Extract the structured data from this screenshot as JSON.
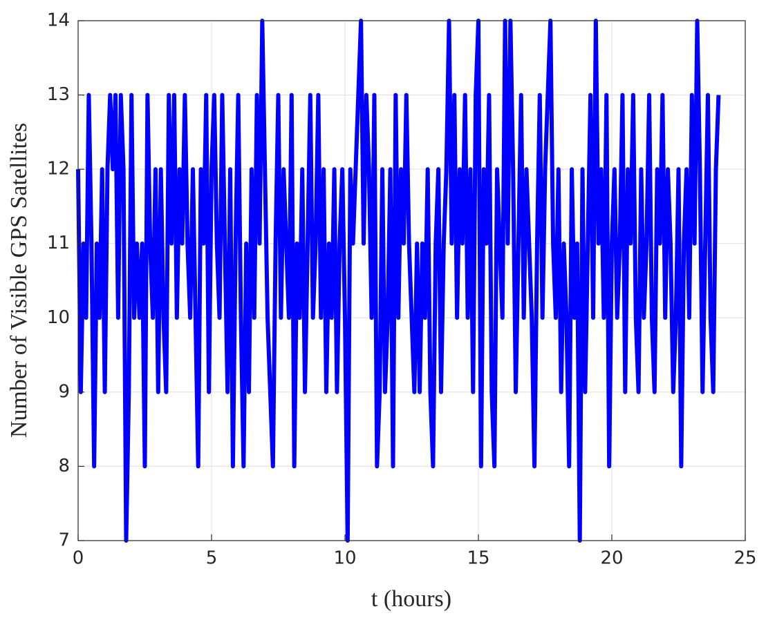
{
  "chart_data": {
    "type": "line",
    "xlabel": "t (hours)",
    "ylabel": "Number of Visible GPS Satellites",
    "color": "#0000ff",
    "grid": true,
    "xlim": [
      0,
      25
    ],
    "xticks": [
      0,
      5,
      10,
      15,
      20,
      25
    ],
    "ylim": [
      7,
      14
    ],
    "yticks": [
      7,
      8,
      9,
      10,
      11,
      12,
      13,
      14
    ],
    "x": [
      0,
      0.1,
      0.2,
      0.3,
      0.4,
      0.5,
      0.6,
      0.7,
      0.8,
      0.9,
      1,
      1.1,
      1.2,
      1.3,
      1.4,
      1.5,
      1.6,
      1.7,
      1.8,
      1.9,
      2,
      2.1,
      2.2,
      2.3,
      2.4,
      2.5,
      2.6,
      2.7,
      2.8,
      2.9,
      3,
      3.1,
      3.2,
      3.3,
      3.4,
      3.5,
      3.6,
      3.7,
      3.8,
      3.9,
      4,
      4.1,
      4.2,
      4.3,
      4.4,
      4.5,
      4.6,
      4.7,
      4.8,
      4.9,
      5,
      5.1,
      5.2,
      5.3,
      5.4,
      5.5,
      5.6,
      5.7,
      5.8,
      5.9,
      6,
      6.1,
      6.2,
      6.3,
      6.4,
      6.5,
      6.6,
      6.7,
      6.8,
      6.9,
      7,
      7.1,
      7.2,
      7.3,
      7.4,
      7.5,
      7.6,
      7.7,
      7.8,
      7.9,
      8,
      8.1,
      8.2,
      8.3,
      8.4,
      8.5,
      8.6,
      8.7,
      8.8,
      8.9,
      9,
      9.1,
      9.2,
      9.3,
      9.4,
      9.5,
      9.6,
      9.7,
      9.8,
      9.9,
      10,
      10.1,
      10.2,
      10.3,
      10.4,
      10.5,
      10.6,
      10.7,
      10.8,
      10.9,
      11,
      11.1,
      11.2,
      11.3,
      11.4,
      11.5,
      11.6,
      11.7,
      11.8,
      11.9,
      12,
      12.1,
      12.2,
      12.3,
      12.4,
      12.5,
      12.6,
      12.7,
      12.8,
      12.9,
      13,
      13.1,
      13.2,
      13.3,
      13.4,
      13.5,
      13.6,
      13.7,
      13.8,
      13.9,
      14,
      14.1,
      14.2,
      14.3,
      14.4,
      14.5,
      14.6,
      14.7,
      14.8,
      14.9,
      15,
      15.1,
      15.2,
      15.3,
      15.4,
      15.5,
      15.6,
      15.7,
      15.8,
      15.9,
      16,
      16.1,
      16.2,
      16.3,
      16.4,
      16.5,
      16.6,
      16.7,
      16.8,
      16.9,
      17,
      17.1,
      17.2,
      17.3,
      17.4,
      17.5,
      17.6,
      17.7,
      17.8,
      17.9,
      18,
      18.1,
      18.2,
      18.3,
      18.4,
      18.5,
      18.6,
      18.7,
      18.8,
      18.9,
      19,
      19.1,
      19.2,
      19.3,
      19.4,
      19.5,
      19.6,
      19.7,
      19.8,
      19.9,
      20,
      20.1,
      20.2,
      20.3,
      20.4,
      20.5,
      20.6,
      20.7,
      20.8,
      20.9,
      21,
      21.1,
      21.2,
      21.3,
      21.4,
      21.5,
      21.6,
      21.7,
      21.8,
      21.9,
      22,
      22.1,
      22.2,
      22.3,
      22.4,
      22.5,
      22.6,
      22.7,
      22.8,
      22.9,
      23,
      23.1,
      23.2,
      23.3,
      23.4,
      23.5,
      23.6,
      23.7,
      23.8,
      23.9,
      24
    ],
    "values": [
      12,
      9,
      11,
      10,
      13,
      11,
      8,
      11,
      10,
      12,
      9,
      12,
      13,
      12,
      13,
      10,
      13,
      12,
      7,
      9,
      13,
      10,
      11,
      10,
      11,
      8,
      13,
      11,
      10,
      12,
      9,
      12,
      10,
      9,
      13,
      11,
      13,
      10,
      12,
      11,
      13,
      11,
      10,
      12,
      10,
      8,
      12,
      11,
      13,
      9,
      12,
      13,
      11,
      10,
      13,
      11,
      9,
      12,
      8,
      11,
      13,
      10,
      8,
      11,
      9,
      12,
      10,
      13,
      11,
      14,
      12,
      10,
      9,
      8,
      11,
      13,
      10,
      12,
      11,
      10,
      13,
      8,
      11,
      10,
      12,
      9,
      11,
      13,
      10,
      11,
      13,
      10,
      12,
      9,
      11,
      10,
      12,
      9,
      11,
      12,
      10,
      7,
      12,
      11,
      12,
      13,
      14,
      11,
      13,
      12,
      10,
      13,
      8,
      9,
      12,
      9,
      10,
      12,
      8,
      13,
      10,
      12,
      11,
      13,
      11,
      10,
      9,
      11,
      9,
      11,
      10,
      12,
      9,
      8,
      11,
      12,
      9,
      11,
      12,
      14,
      11,
      13,
      10,
      12,
      11,
      13,
      10,
      12,
      9,
      13,
      14,
      8,
      12,
      11,
      13,
      9,
      8,
      12,
      11,
      10,
      14,
      11,
      14,
      12,
      9,
      11,
      13,
      10,
      12,
      11,
      10,
      8,
      11,
      13,
      10,
      12,
      13,
      14,
      11,
      10,
      12,
      9,
      11,
      10,
      8,
      12,
      10,
      11,
      7,
      12,
      9,
      11,
      13,
      10,
      14,
      11,
      12,
      10,
      13,
      8,
      11,
      12,
      10,
      11,
      13,
      9,
      12,
      11,
      13,
      10,
      9,
      12,
      10,
      11,
      13,
      10,
      9,
      12,
      11,
      13,
      10,
      12,
      11,
      9,
      10,
      12,
      8,
      11,
      12,
      10,
      13,
      11,
      14,
      12,
      9,
      11,
      13,
      10,
      9,
      12,
      13
    ]
  }
}
